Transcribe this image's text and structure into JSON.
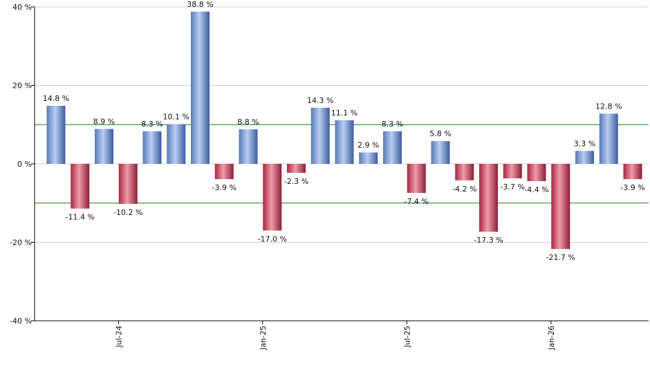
{
  "chart_data": {
    "type": "bar",
    "title": "",
    "xlabel": "",
    "ylabel": "",
    "ylim": [
      -40,
      40
    ],
    "yticks": [
      -40,
      -20,
      0,
      20,
      40
    ],
    "ytick_labels": [
      "-40 %",
      "-20 %",
      "0 %",
      "20 %",
      "40 %"
    ],
    "xtick_labels": [
      {
        "label": "Jul-24",
        "index": 2.6
      },
      {
        "label": "Jan-25",
        "index": 8.6
      },
      {
        "label": "Jul-25",
        "index": 14.6
      },
      {
        "label": "Jan-26",
        "index": 20.6
      }
    ],
    "reference_lines": [
      10,
      -10
    ],
    "value_suffix": " %",
    "values": [
      14.8,
      -11.4,
      8.9,
      -10.2,
      8.3,
      10.1,
      38.8,
      -3.9,
      8.8,
      -17.0,
      -2.3,
      14.3,
      11.1,
      2.9,
      8.3,
      -7.4,
      5.8,
      -4.2,
      -17.3,
      -3.7,
      -4.4,
      -21.7,
      3.3,
      12.8,
      -3.9
    ],
    "data_labels": [
      "14.8 %",
      "-11.4 %",
      "8.9 %",
      "-10.2 %",
      "8.3 %",
      "10.1 %",
      "38.8 %",
      "-3.9 %",
      "8.8 %",
      "-17.0 %",
      "-2.3 %",
      "14.3 %",
      "11.1 %",
      "2.9 %",
      "8.3 %",
      "-7.4 %",
      "5.8 %",
      "-4.2 %",
      "-17.3 %",
      "-3.7 %",
      "-4.4 %",
      "-21.7 %",
      "3.3 %",
      "12.8 %",
      "-3.9 %"
    ],
    "grid": true,
    "colors": {
      "positive": "#7a9fe0",
      "negative": "#d0405e",
      "reference_line": "#1a7a1a",
      "grid": "#d0d0d0",
      "axis": "#000000"
    }
  }
}
